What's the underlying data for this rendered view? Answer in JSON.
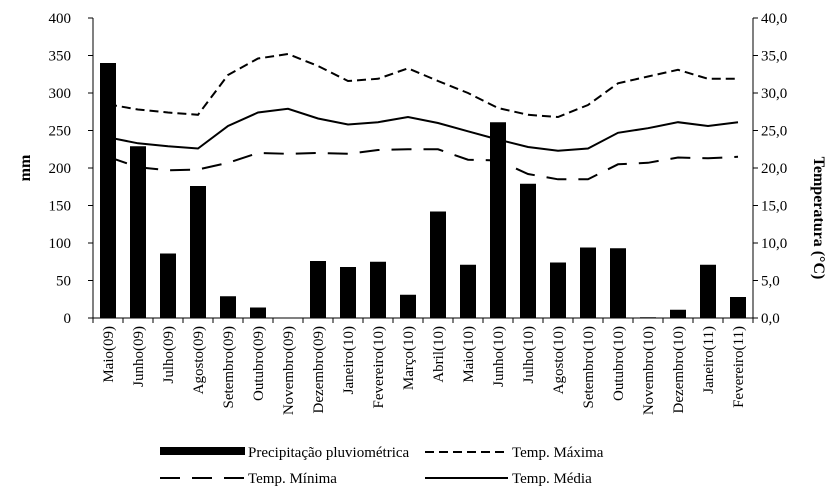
{
  "chart_data": {
    "type": "bar+line",
    "categories": [
      "Maio(09)",
      "Junho(09)",
      "Julho(09)",
      "Agosto(09)",
      "Setembro(09)",
      "Outubro(09)",
      "Novembro(09)",
      "Dezembro(09)",
      "Janeiro(10)",
      "Fevereiro(10)",
      "Março(10)",
      "Abril(10)",
      "Maio(10)",
      "Junho(10)",
      "Julho(10)",
      "Agosto(10)",
      "Setembro(10)",
      "Outubro(10)",
      "Novembro(10)",
      "Dezembro(10)",
      "Janeiro(11)",
      "Fevereiro(11)"
    ],
    "bars": {
      "name": "Precipitação pluviométrica",
      "axis": "left",
      "values": [
        340,
        229,
        86,
        176,
        29,
        14,
        0,
        76,
        68,
        75,
        31,
        142,
        71,
        261,
        179,
        74,
        94,
        93,
        1,
        11,
        71,
        28
      ]
    },
    "lines": [
      {
        "name": "Temp. Máxima",
        "axis": "right",
        "style": "dashed",
        "values": [
          28.5,
          27.8,
          27.4,
          27.1,
          32.4,
          34.6,
          35.2,
          33.6,
          31.6,
          31.9,
          33.3,
          31.6,
          30.0,
          28.0,
          27.1,
          26.8,
          28.4,
          31.3,
          32.2,
          33.1,
          31.9,
          31.9
        ]
      },
      {
        "name": "Temp. Média",
        "axis": "right",
        "style": "solid",
        "values": [
          24.1,
          23.3,
          22.9,
          22.6,
          25.6,
          27.4,
          27.9,
          26.6,
          25.8,
          26.1,
          26.8,
          26.0,
          24.9,
          23.8,
          22.8,
          22.3,
          22.6,
          24.7,
          25.3,
          26.1,
          25.6,
          26.1
        ]
      },
      {
        "name": "Temp. Mínima",
        "axis": "right",
        "style": "long-dashed",
        "values": [
          21.5,
          20.1,
          19.7,
          19.8,
          20.7,
          22.0,
          21.9,
          22.0,
          21.9,
          22.4,
          22.5,
          22.5,
          21.1,
          21.0,
          19.2,
          18.5,
          18.5,
          20.5,
          20.7,
          21.4,
          21.3,
          21.5
        ]
      }
    ],
    "left_axis": {
      "label": "mm",
      "ylim": [
        0,
        400
      ],
      "ticks": [
        "0",
        "50",
        "100",
        "150",
        "200",
        "250",
        "300",
        "350",
        "400"
      ]
    },
    "right_axis": {
      "label": "Temperatura (°C)",
      "ylim": [
        0,
        40
      ],
      "ticks": [
        "0,0",
        "5,0",
        "10,0",
        "15,0",
        "20,0",
        "25,0",
        "30,0",
        "35,0",
        "40,0"
      ]
    },
    "legend": {
      "placement": "bottom",
      "entries": [
        "Precipitação pluviométrica",
        "Temp. Máxima",
        "Temp. Mínima",
        "Temp. Média"
      ]
    },
    "grid": false,
    "colors": {
      "bar": "#000000",
      "line": "#000000"
    }
  }
}
